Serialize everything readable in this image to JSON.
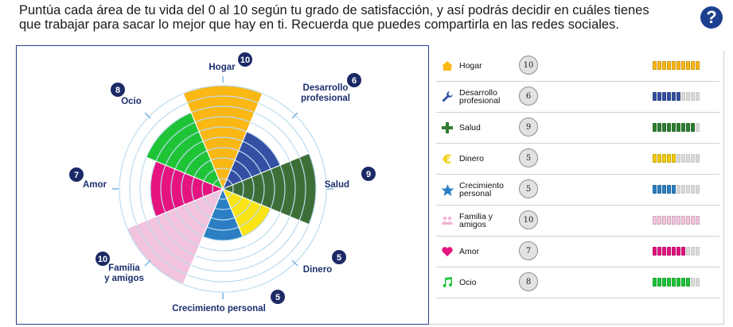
{
  "instructions": {
    "line1": "Puntúa cada área de tu vida del 0 al 10 según tu grado de satisfacción, y así podrás decidir en cuáles tienes",
    "line2": "que trabajar para sacar lo mejor que hay en ti. Recuerda que puedes compartirla en las redes sociales."
  },
  "help_button": {
    "label": "?"
  },
  "chart_data": {
    "type": "polar-area",
    "max_value": 10,
    "rings": 10,
    "categories": [
      {
        "label_lines": [
          "Hogar"
        ],
        "value": 10,
        "color": "#fbb714"
      },
      {
        "label_lines": [
          "Desarrollo",
          "profesional"
        ],
        "value": 6,
        "color": "#3550a3"
      },
      {
        "label_lines": [
          "Salud"
        ],
        "value": 9,
        "color": "#3d6e37"
      },
      {
        "label_lines": [
          "Dinero"
        ],
        "value": 5,
        "color": "#fae416"
      },
      {
        "label_lines": [
          "Crecimiento personal"
        ],
        "value": 5,
        "color": "#2b7fc2"
      },
      {
        "label_lines": [
          "Familia",
          "y amigos"
        ],
        "value": 10,
        "color": "#f2c3dd"
      },
      {
        "label_lines": [
          "Amor"
        ],
        "value": 7,
        "color": "#e5137f"
      },
      {
        "label_lines": [
          "Ocio"
        ],
        "value": 8,
        "color": "#1ec436"
      }
    ]
  },
  "legend": {
    "rows": [
      {
        "label_lines": [
          "Hogar"
        ],
        "score": "10",
        "value": 10,
        "color": "#fbb714",
        "empty": "#f7e6b3",
        "icon": "house-icon"
      },
      {
        "label_lines": [
          "Desarrollo",
          "profesional"
        ],
        "score": "6",
        "value": 6,
        "color": "#3550a3",
        "empty": "#d9d9d9",
        "icon": "wrench-icon"
      },
      {
        "label_lines": [
          "Salud"
        ],
        "score": "9",
        "value": 9,
        "color": "#2e7d32",
        "empty": "#d9d9d9",
        "icon": "plus-icon"
      },
      {
        "label_lines": [
          "Dinero"
        ],
        "score": "5",
        "value": 5,
        "color": "#f2cc0c",
        "empty": "#d9d9d9",
        "icon": "euro-icon"
      },
      {
        "label_lines": [
          "Crecimiento",
          "personal"
        ],
        "score": "5",
        "value": 5,
        "color": "#2b7fc2",
        "empty": "#d9d9d9",
        "icon": "star-icon"
      },
      {
        "label_lines": [
          "Familia y",
          "amigos"
        ],
        "score": "10",
        "value": 10,
        "color": "#f5c7de",
        "empty": "#f5c7de",
        "icon": "people-icon"
      },
      {
        "label_lines": [
          "Amor"
        ],
        "score": "7",
        "value": 7,
        "color": "#e5137f",
        "empty": "#d9d9d9",
        "icon": "heart-icon"
      },
      {
        "label_lines": [
          "Ocio"
        ],
        "score": "8",
        "value": 8,
        "color": "#1ec436",
        "empty": "#d9d9d9",
        "icon": "music-note-icon"
      }
    ]
  }
}
